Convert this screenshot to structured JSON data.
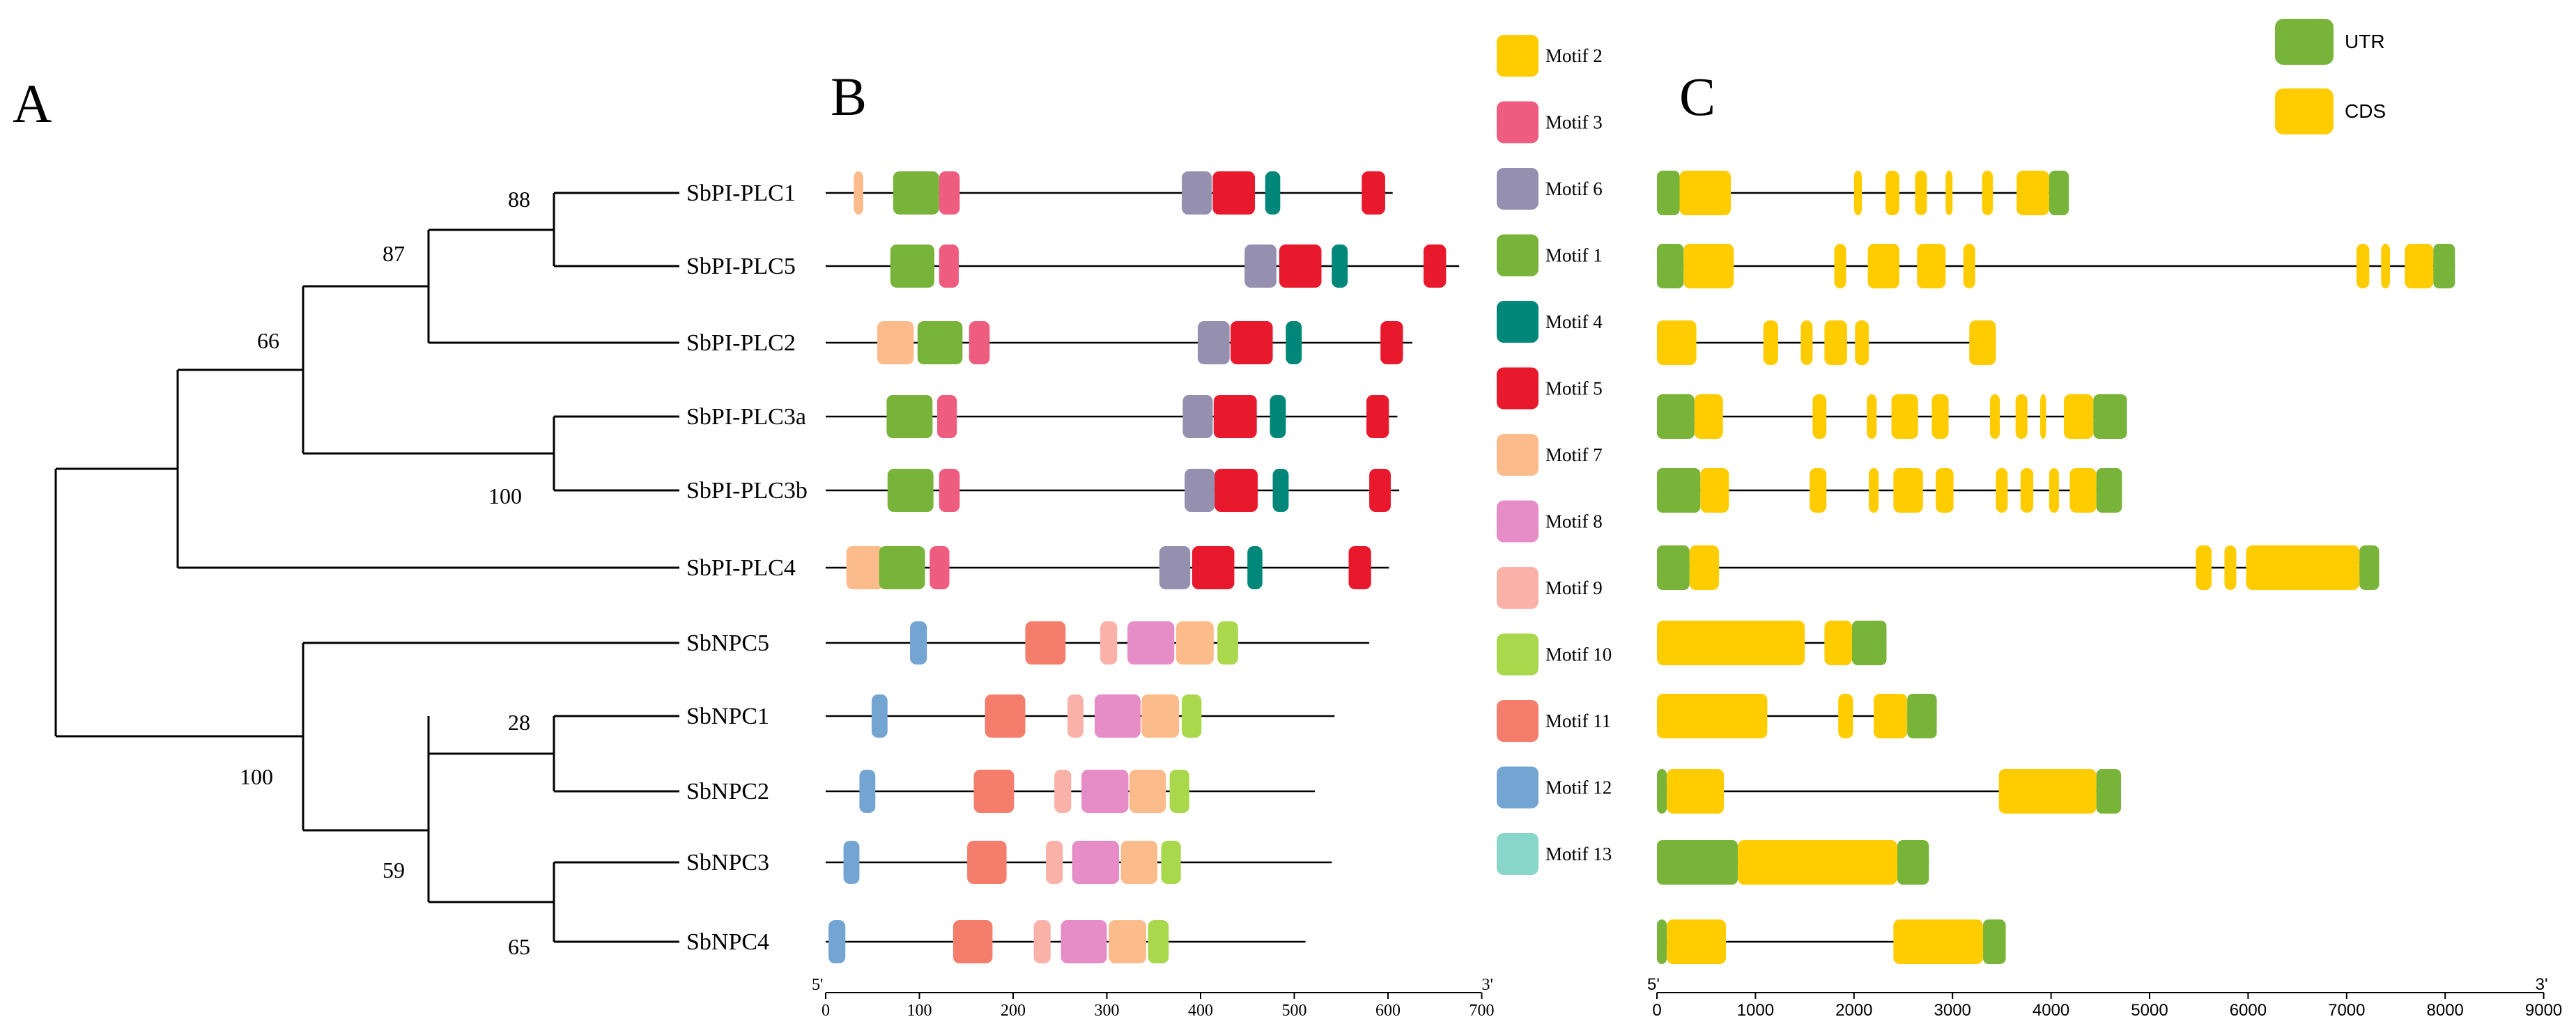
{
  "panels": {
    "A": "A",
    "B": "B",
    "C": "C"
  },
  "tree": {
    "genes": [
      "SbPI-PLC1",
      "SbPI-PLC5",
      "SbPI-PLC2",
      "SbPI-PLC3a",
      "SbPI-PLC3b",
      "SbPI-PLC4",
      "SbNPC5",
      "SbNPC1",
      "SbNPC2",
      "SbNPC3",
      "SbNPC4"
    ],
    "bootstrap": [
      "88",
      "87",
      "66",
      "100",
      "100",
      "28",
      "59",
      "65"
    ]
  },
  "motif_legend": [
    {
      "label": "Motif 2",
      "color": "#FFCC00"
    },
    {
      "label": "Motif 3",
      "color": "#EE5C80"
    },
    {
      "label": "Motif 6",
      "color": "#9690B0"
    },
    {
      "label": "Motif 1",
      "color": "#78B43A"
    },
    {
      "label": "Motif 4",
      "color": "#00877A"
    },
    {
      "label": "Motif 5",
      "color": "#E8192C"
    },
    {
      "label": "Motif 7",
      "color": "#FCBB8A"
    },
    {
      "label": "Motif 8",
      "color": "#E68CC6"
    },
    {
      "label": "Motif 9",
      "color": "#F9B1A8"
    },
    {
      "label": "Motif 10",
      "color": "#A9D84D"
    },
    {
      "label": "Motif 11",
      "color": "#F47D6B"
    },
    {
      "label": "Motif 12",
      "color": "#74A5D2"
    },
    {
      "label": "Motif 13",
      "color": "#88D6C9"
    }
  ],
  "motif_axis": {
    "ticks": [
      "0",
      "100",
      "200",
      "300",
      "400",
      "500",
      "600",
      "700"
    ],
    "start_label": "5'",
    "end_label": "3'"
  },
  "gene_legend": [
    {
      "label": "UTR",
      "color": "#78B43A"
    },
    {
      "label": "CDS",
      "color": "#FFCC00"
    }
  ],
  "gene_axis": {
    "ticks": [
      "0",
      "1000",
      "2000",
      "3000",
      "4000",
      "5000",
      "6000",
      "7000",
      "8000",
      "9000"
    ],
    "start_label": "5'",
    "end_label": "3'"
  },
  "motif_data": [
    {
      "gene": "SbPI-PLC1",
      "length": 605,
      "motifs": [
        [
          7,
          30,
          40
        ],
        [
          1,
          72,
          121
        ],
        [
          3,
          121,
          143
        ],
        [
          6,
          380,
          412
        ],
        [
          5,
          413,
          458
        ],
        [
          4,
          469,
          485
        ],
        [
          5,
          572,
          597
        ]
      ]
    },
    {
      "gene": "SbPI-PLC5",
      "length": 676,
      "motifs": [
        [
          1,
          69,
          116
        ],
        [
          3,
          121,
          142
        ],
        [
          6,
          447,
          481
        ],
        [
          5,
          484,
          529
        ],
        [
          4,
          540,
          557
        ],
        [
          5,
          638,
          662
        ]
      ]
    },
    {
      "gene": "SbPI-PLC2",
      "length": 626,
      "motifs": [
        [
          7,
          55,
          94
        ],
        [
          1,
          98,
          146
        ],
        [
          3,
          153,
          175
        ],
        [
          6,
          397,
          431
        ],
        [
          5,
          432,
          477
        ],
        [
          4,
          491,
          508
        ],
        [
          5,
          592,
          616
        ]
      ]
    },
    {
      "gene": "SbPI-PLC3a",
      "length": 610,
      "motifs": [
        [
          1,
          65,
          114
        ],
        [
          3,
          119,
          140
        ],
        [
          6,
          381,
          413
        ],
        [
          5,
          414,
          460
        ],
        [
          4,
          474,
          491
        ],
        [
          5,
          577,
          601
        ]
      ]
    },
    {
      "gene": "SbPI-PLC3b",
      "length": 612,
      "motifs": [
        [
          1,
          66,
          115
        ],
        [
          3,
          121,
          143
        ],
        [
          6,
          383,
          415
        ],
        [
          5,
          415,
          461
        ],
        [
          4,
          477,
          494
        ],
        [
          5,
          580,
          603
        ]
      ]
    },
    {
      "gene": "SbPI-PLC4",
      "length": 601,
      "motifs": [
        [
          7,
          22,
          62
        ],
        [
          1,
          57,
          106
        ],
        [
          3,
          111,
          132
        ],
        [
          6,
          356,
          389
        ],
        [
          5,
          391,
          436
        ],
        [
          4,
          450,
          466
        ],
        [
          5,
          558,
          582
        ]
      ]
    },
    {
      "gene": "SbNPC5",
      "length": 580,
      "motifs": [
        [
          12,
          90,
          108
        ],
        [
          11,
          213,
          256
        ],
        [
          9,
          293,
          311
        ],
        [
          8,
          322,
          372
        ],
        [
          7,
          374,
          414
        ],
        [
          10,
          418,
          440
        ]
      ]
    },
    {
      "gene": "SbNPC1",
      "length": 543,
      "motifs": [
        [
          12,
          49,
          66
        ],
        [
          11,
          170,
          213
        ],
        [
          9,
          258,
          275
        ],
        [
          8,
          287,
          336
        ],
        [
          7,
          337,
          377
        ],
        [
          10,
          380,
          401
        ]
      ]
    },
    {
      "gene": "SbNPC2",
      "length": 522,
      "motifs": [
        [
          12,
          36,
          53
        ],
        [
          11,
          158,
          201
        ],
        [
          9,
          244,
          262
        ],
        [
          8,
          273,
          323
        ],
        [
          7,
          324,
          363
        ],
        [
          10,
          367,
          388
        ]
      ]
    },
    {
      "gene": "SbNPC3",
      "length": 540,
      "motifs": [
        [
          12,
          19,
          36
        ],
        [
          11,
          151,
          193
        ],
        [
          9,
          235,
          253
        ],
        [
          8,
          263,
          313
        ],
        [
          7,
          315,
          354
        ],
        [
          10,
          358,
          379
        ]
      ]
    },
    {
      "gene": "SbNPC4",
      "length": 512,
      "motifs": [
        [
          12,
          3,
          21
        ],
        [
          11,
          136,
          178
        ],
        [
          9,
          222,
          240
        ],
        [
          8,
          251,
          300
        ],
        [
          7,
          302,
          342
        ],
        [
          10,
          344,
          366
        ]
      ]
    }
  ],
  "gene_data": [
    {
      "gene": "SbPI-PLC1",
      "length": 4180,
      "utr": [
        [
          0,
          230
        ],
        [
          3980,
          4180
        ]
      ],
      "cds": [
        [
          230,
          750
        ],
        [
          2000,
          2080
        ],
        [
          2320,
          2460
        ],
        [
          2620,
          2740
        ],
        [
          2930,
          3000
        ],
        [
          3300,
          3410
        ],
        [
          3650,
          3980
        ]
      ]
    },
    {
      "gene": "SbPI-PLC5",
      "length": 8100,
      "utr": [
        [
          0,
          270
        ],
        [
          7880,
          8100
        ]
      ],
      "cds": [
        [
          270,
          780
        ],
        [
          1800,
          1920
        ],
        [
          2140,
          2460
        ],
        [
          2640,
          2930
        ],
        [
          3110,
          3230
        ],
        [
          7100,
          7230
        ],
        [
          7350,
          7440
        ],
        [
          7590,
          7880
        ]
      ]
    },
    {
      "gene": "SbPI-PLC2",
      "length": 3440,
      "utr": [],
      "cds": [
        [
          0,
          400
        ],
        [
          1080,
          1230
        ],
        [
          1460,
          1580
        ],
        [
          1700,
          1930
        ],
        [
          2010,
          2150
        ],
        [
          3170,
          3440
        ]
      ]
    },
    {
      "gene": "SbPI-PLC3a",
      "length": 4770,
      "utr": [
        [
          0,
          380
        ],
        [
          4430,
          4770
        ]
      ],
      "cds": [
        [
          380,
          670
        ],
        [
          1580,
          1720
        ],
        [
          2130,
          2230
        ],
        [
          2380,
          2650
        ],
        [
          2790,
          2960
        ],
        [
          3380,
          3480
        ],
        [
          3640,
          3760
        ],
        [
          3890,
          3950
        ],
        [
          4130,
          4430
        ]
      ]
    },
    {
      "gene": "SbPI-PLC3b",
      "length": 4720,
      "utr": [
        [
          0,
          440
        ],
        [
          4460,
          4720
        ]
      ],
      "cds": [
        [
          440,
          730
        ],
        [
          1550,
          1720
        ],
        [
          2150,
          2250
        ],
        [
          2400,
          2700
        ],
        [
          2830,
          3010
        ],
        [
          3440,
          3560
        ],
        [
          3690,
          3820
        ],
        [
          3980,
          4080
        ],
        [
          4190,
          4460
        ]
      ]
    },
    {
      "gene": "SbPI-PLC4",
      "length": 7330,
      "utr": [
        [
          0,
          330
        ],
        [
          7130,
          7330
        ]
      ],
      "cds": [
        [
          330,
          630
        ],
        [
          5470,
          5630
        ],
        [
          5760,
          5880
        ],
        [
          5980,
          7130
        ]
      ]
    },
    {
      "gene": "SbNPC5",
      "length": 2330,
      "utr": [
        [
          1980,
          2330
        ]
      ],
      "cds": [
        [
          0,
          1500
        ],
        [
          1700,
          1980
        ]
      ]
    },
    {
      "gene": "SbNPC1",
      "length": 2840,
      "utr": [
        [
          2540,
          2840
        ]
      ],
      "cds": [
        [
          0,
          1120
        ],
        [
          1840,
          1990
        ],
        [
          2200,
          2540
        ]
      ]
    },
    {
      "gene": "SbNPC2",
      "length": 4710,
      "utr": [
        [
          0,
          100
        ],
        [
          4460,
          4710
        ]
      ],
      "cds": [
        [
          100,
          680
        ],
        [
          3470,
          4460
        ]
      ]
    },
    {
      "gene": "SbNPC3",
      "length": 2760,
      "utr": [
        [
          0,
          820
        ],
        [
          2440,
          2760
        ]
      ],
      "cds": [
        [
          820,
          2440
        ]
      ]
    },
    {
      "gene": "SbNPC4",
      "length": 3540,
      "utr": [
        [
          0,
          100
        ],
        [
          3310,
          3540
        ]
      ],
      "cds": [
        [
          100,
          700
        ],
        [
          2400,
          3310
        ]
      ]
    }
  ]
}
